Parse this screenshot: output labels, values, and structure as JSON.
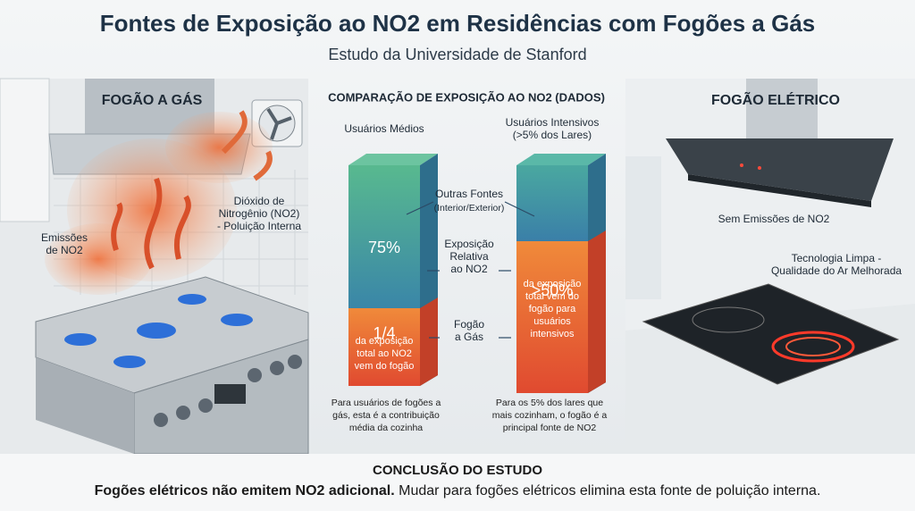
{
  "header": {
    "title": "Fontes de Exposição ao NO2 em Residências com Fogões a Gás",
    "subtitle": "Estudo da Universidade de Stanford"
  },
  "gas_panel": {
    "title": "FOGÃO A GÁS",
    "emissions_label": [
      "Emissões",
      "de NO2"
    ],
    "no2_label": [
      "Dióxido de",
      "Nitrogênio (NO2)",
      "- Poluição Interna"
    ]
  },
  "comparison": {
    "title": "COMPARAÇÃO DE EXPOSIÇÃO AO NO2 (DADOS)",
    "columns": [
      {
        "heading": [
          "Usuários Médios"
        ],
        "upper_value": "75%",
        "lower_value": "1/4",
        "lower_text": [
          "da exposição",
          "total ao NO2",
          "vem do fogão"
        ],
        "note": [
          "Para usuários de fogões a",
          "gás, esta é a contribuição",
          "média da cozinha"
        ]
      },
      {
        "heading": [
          "Usuários Intensivos",
          "(>5% dos Lares)"
        ],
        "lower_value": ">50%",
        "lower_text": [
          "da exposição",
          "total vem do",
          "fogão para",
          "usuários",
          "intensivos"
        ],
        "note": [
          "Para os 5% dos lares que",
          "mais cozinham, o fogão é a",
          "principal fonte de NO2"
        ]
      }
    ],
    "other_sources": {
      "label": "Outras Fontes",
      "sub": "(Interior/Exterior)"
    },
    "relative_label": [
      "Exposição",
      "Relativa",
      "ao NO2"
    ],
    "stove_label": [
      "Fogão",
      "a Gás"
    ]
  },
  "electric_panel": {
    "title": "FOGÃO ELÉTRICO",
    "no_emissions_label": "Sem Emissões de NO2",
    "clean_tech_label": [
      "Tecnologia Limpa -",
      "Qualidade do Ar Melhorada"
    ]
  },
  "conclusion": {
    "heading": "CONCLUSÃO DO ESTUDO",
    "bold": "Fogões elétricos não emitem NO2 adicional.",
    "rest": " Mudar para fogões elétricos elimina esta fonte de poluição interna."
  }
}
